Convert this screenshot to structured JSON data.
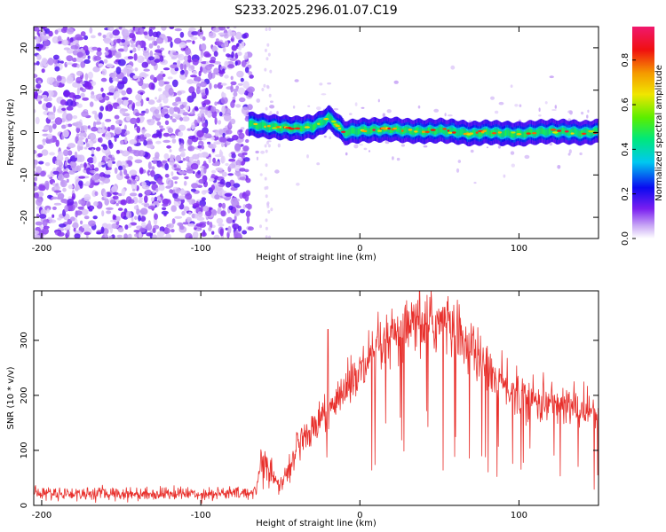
{
  "title": "S233.2025.296.01.07.C19",
  "chart_data": [
    {
      "type": "heatmap",
      "xlabel": "Height of straight line (km)",
      "ylabel": "Frequency (Hz)",
      "xlim": [
        -205,
        150
      ],
      "ylim": [
        -25,
        25
      ],
      "xticks": [
        -200,
        -100,
        0,
        100
      ],
      "yticks": [
        -20,
        -10,
        0,
        10,
        20
      ],
      "colorbar": {
        "label": "Normalized spectral amplitude",
        "range": [
          0,
          0.95
        ],
        "ticks": [
          0.0,
          0.2,
          0.4,
          0.6,
          0.8
        ]
      },
      "ridge": {
        "x": [
          -70,
          -60,
          -50,
          -40,
          -30,
          -25,
          -20,
          -15,
          -10,
          0,
          10,
          20,
          30,
          40,
          50,
          60,
          70,
          80,
          90,
          100,
          110,
          120,
          130,
          140,
          150
        ],
        "frequency": [
          2.0,
          1.5,
          1.2,
          1.0,
          1.4,
          2.2,
          3.5,
          2.0,
          0.0,
          0.5,
          0.6,
          0.8,
          0.4,
          0.3,
          0.5,
          0.2,
          -0.3,
          0.1,
          -0.2,
          -0.4,
          0.1,
          0.3,
          0.2,
          -0.1,
          0.3
        ]
      }
    },
    {
      "type": "line",
      "xlabel": "Height of straight line (km)",
      "ylabel": "SNR (10 * v/v)",
      "xlim": [
        -205,
        150
      ],
      "ylim": [
        0,
        390
      ],
      "xticks": [
        -200,
        -100,
        0,
        100
      ],
      "yticks": [
        0,
        100,
        200,
        300
      ],
      "series": [
        {
          "color": "#e8302c",
          "x": [
            -205,
            -190,
            -175,
            -160,
            -145,
            -130,
            -115,
            -100,
            -85,
            -70,
            -65,
            -60,
            -55,
            -50,
            -40,
            -30,
            -20,
            -10,
            0,
            10,
            20,
            30,
            40,
            50,
            60,
            70,
            80,
            90,
            100,
            110,
            120,
            130,
            140,
            150
          ],
          "y": [
            22,
            22,
            21,
            22,
            21,
            21,
            22,
            21,
            22,
            22,
            30,
            110,
            45,
            35,
            100,
            140,
            170,
            210,
            240,
            275,
            300,
            320,
            330,
            335,
            320,
            285,
            250,
            220,
            200,
            190,
            185,
            180,
            175,
            170
          ]
        }
      ]
    }
  ]
}
